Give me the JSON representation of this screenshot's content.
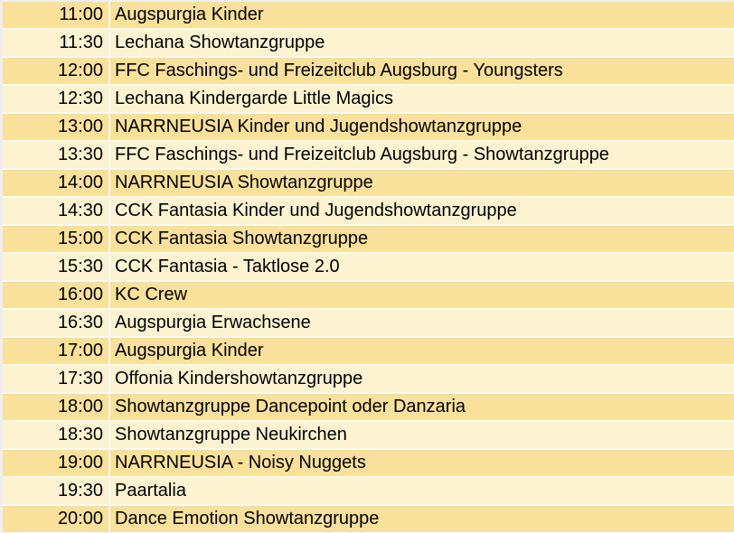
{
  "page": {
    "outer_background": "#EFEEF2",
    "grid_gap_color": "#FCFAF4",
    "text_color": "#000000"
  },
  "schedule": {
    "row_colors": {
      "odd": "#FAE199",
      "even": "#FDF3D1"
    },
    "rows": [
      {
        "time": "11:00",
        "event": "Augspurgia Kinder"
      },
      {
        "time": "11:30",
        "event": "Lechana Showtanzgruppe"
      },
      {
        "time": "12:00",
        "event": "FFC Faschings- und Freizeitclub Augsburg - Youngsters"
      },
      {
        "time": "12:30",
        "event": "Lechana Kindergarde Little Magics"
      },
      {
        "time": "13:00",
        "event": "NARRNEUSIA Kinder und Jugendshowtanzgruppe"
      },
      {
        "time": "13:30",
        "event": "FFC Faschings- und Freizeitclub Augsburg - Showtanzgruppe"
      },
      {
        "time": "14:00",
        "event": "NARRNEUSIA Showtanzgruppe"
      },
      {
        "time": "14:30",
        "event": "CCK Fantasia Kinder und Jugendshowtanzgruppe"
      },
      {
        "time": "15:00",
        "event": "CCK Fantasia Showtanzgruppe"
      },
      {
        "time": "15:30",
        "event": "CCK Fantasia - Taktlose 2.0"
      },
      {
        "time": "16:00",
        "event": "KC Crew"
      },
      {
        "time": "16:30",
        "event": "Augspurgia Erwachsene"
      },
      {
        "time": "17:00",
        "event": "Augspurgia Kinder"
      },
      {
        "time": "17:30",
        "event": "Offonia Kindershowtanzgruppe"
      },
      {
        "time": "18:00",
        "event": "Showtanzgruppe Dancepoint oder Danzaria"
      },
      {
        "time": "18:30",
        "event": "Showtanzgruppe Neukirchen"
      },
      {
        "time": "19:00",
        "event": "NARRNEUSIA - Noisy Nuggets"
      },
      {
        "time": "19:30",
        "event": "Paartalia"
      },
      {
        "time": "20:00",
        "event": "Dance Emotion Showtanzgruppe"
      }
    ]
  }
}
